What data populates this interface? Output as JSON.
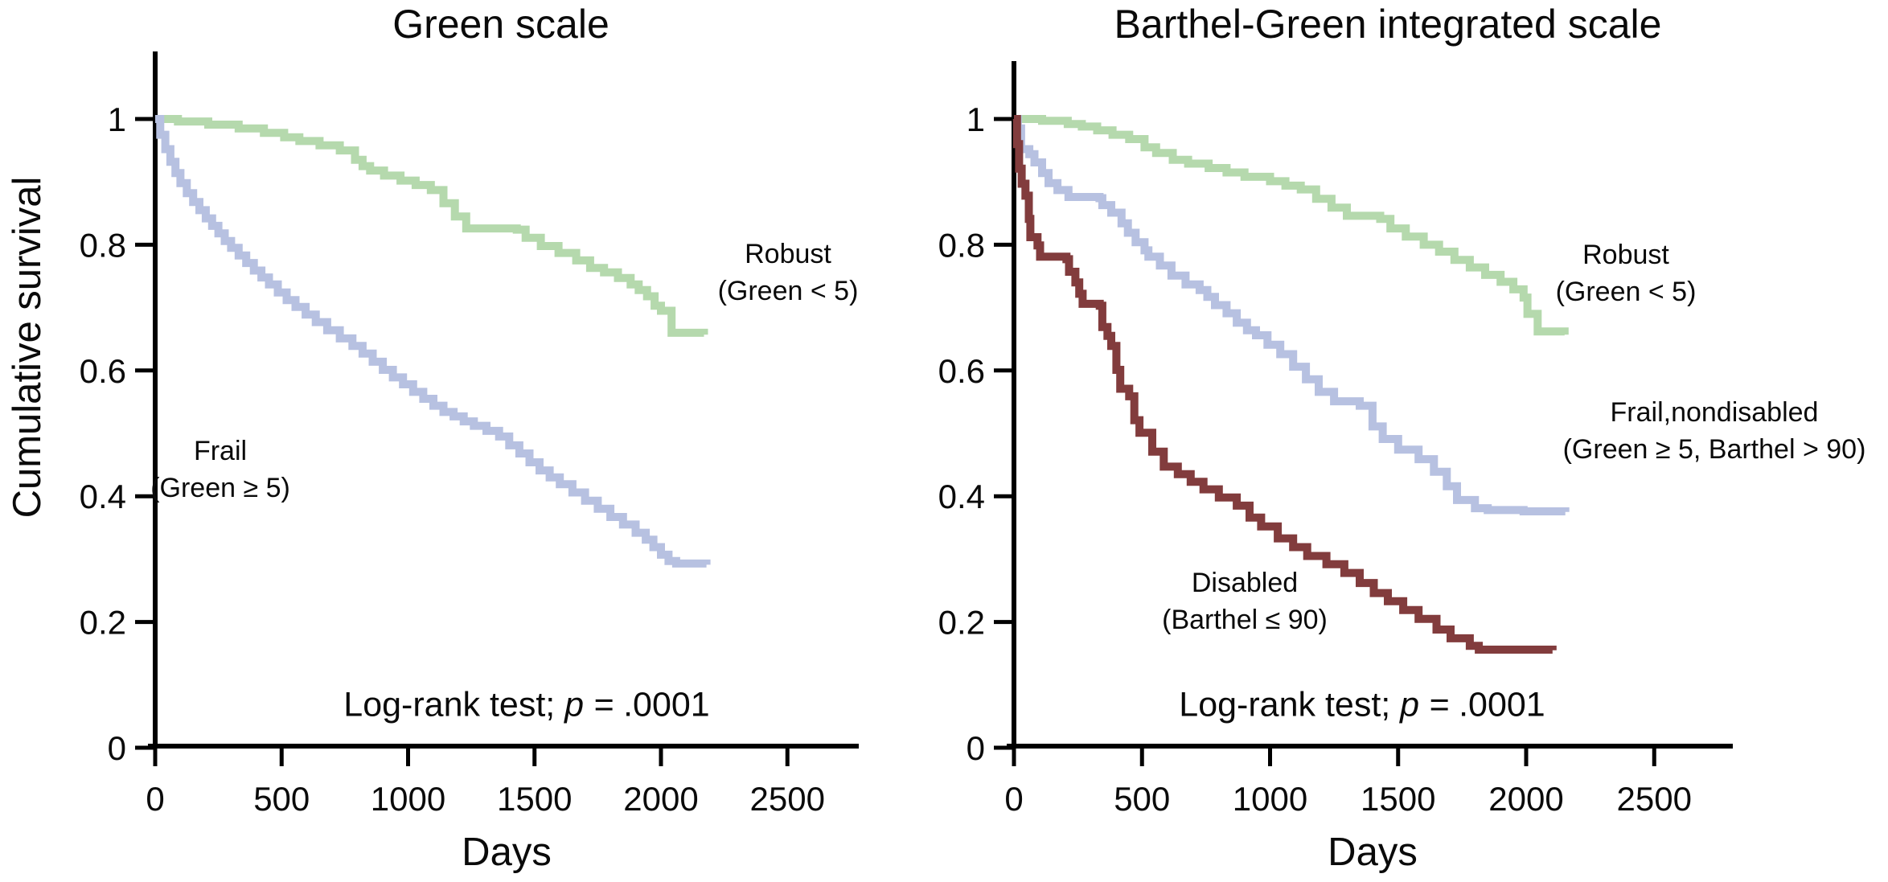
{
  "figure": {
    "y_axis_label": "Cumulative survival",
    "panels": [
      {
        "title": "Green scale",
        "x_axis_label": "Days",
        "log_rank_prefix": "Log-rank test; ",
        "log_rank_p": "p = ",
        "log_rank_value": ".0001",
        "annotations": [
          {
            "line1": "Robust",
            "line2": "(Green < 5)"
          },
          {
            "line1": "Frail",
            "line2": "(Green ≥ 5)"
          }
        ]
      },
      {
        "title": "Barthel-Green integrated scale",
        "x_axis_label": "Days",
        "log_rank_prefix": "Log-rank test; ",
        "log_rank_p": "p = ",
        "log_rank_value": ".0001",
        "annotations": [
          {
            "line1": "Robust",
            "line2": "(Green < 5)"
          },
          {
            "line1": "Frail,nondisabled",
            "line2": "(Green ≥ 5, Barthel > 90)"
          },
          {
            "line1": "Disabled",
            "line2": "(Barthel ≤ 90)"
          }
        ]
      }
    ]
  },
  "chart_data": [
    {
      "type": "line",
      "subtype": "kaplan-meier-step",
      "title": "Green scale",
      "xlabel": "Days",
      "ylabel": "Cumulative survival",
      "xlim": [
        0,
        2780
      ],
      "ylim": [
        0,
        1.1
      ],
      "xticks": [
        0,
        500,
        1000,
        1500,
        2000,
        2500
      ],
      "yticks": [
        0,
        0.2,
        0.4,
        0.6,
        0.8,
        1
      ],
      "grid": false,
      "annotation": "Log-rank test; p = .0001",
      "series": [
        {
          "name": "Robust (Green < 5)",
          "color": "#b5d9ad",
          "points": [
            [
              0,
              1.0
            ],
            [
              90,
              0.996
            ],
            [
              210,
              0.991
            ],
            [
              330,
              0.985
            ],
            [
              430,
              0.978
            ],
            [
              510,
              0.971
            ],
            [
              570,
              0.965
            ],
            [
              650,
              0.958
            ],
            [
              730,
              0.95
            ],
            [
              790,
              0.935
            ],
            [
              820,
              0.925
            ],
            [
              850,
              0.918
            ],
            [
              905,
              0.91
            ],
            [
              970,
              0.902
            ],
            [
              1030,
              0.895
            ],
            [
              1090,
              0.887
            ],
            [
              1140,
              0.866
            ],
            [
              1185,
              0.845
            ],
            [
              1230,
              0.826
            ],
            [
              1430,
              0.824
            ],
            [
              1465,
              0.811
            ],
            [
              1525,
              0.798
            ],
            [
              1595,
              0.787
            ],
            [
              1665,
              0.775
            ],
            [
              1720,
              0.763
            ],
            [
              1775,
              0.756
            ],
            [
              1830,
              0.747
            ],
            [
              1880,
              0.737
            ],
            [
              1912,
              0.728
            ],
            [
              1945,
              0.718
            ],
            [
              1975,
              0.703
            ],
            [
              2000,
              0.695
            ],
            [
              2042,
              0.66
            ],
            [
              2170,
              0.657
            ]
          ]
        },
        {
          "name": "Frail (Green ≥ 5)",
          "color": "#b7c1e1",
          "points": [
            [
              0,
              1.0
            ],
            [
              20,
              0.975
            ],
            [
              40,
              0.952
            ],
            [
              60,
              0.932
            ],
            [
              80,
              0.914
            ],
            [
              100,
              0.898
            ],
            [
              125,
              0.882
            ],
            [
              150,
              0.868
            ],
            [
              175,
              0.855
            ],
            [
              200,
              0.842
            ],
            [
              225,
              0.83
            ],
            [
              250,
              0.818
            ],
            [
              275,
              0.806
            ],
            [
              300,
              0.795
            ],
            [
              330,
              0.783
            ],
            [
              360,
              0.771
            ],
            [
              390,
              0.759
            ],
            [
              420,
              0.748
            ],
            [
              450,
              0.737
            ],
            [
              485,
              0.724
            ],
            [
              520,
              0.712
            ],
            [
              555,
              0.701
            ],
            [
              595,
              0.689
            ],
            [
              635,
              0.677
            ],
            [
              680,
              0.664
            ],
            [
              730,
              0.651
            ],
            [
              780,
              0.639
            ],
            [
              820,
              0.627
            ],
            [
              860,
              0.614
            ],
            [
              900,
              0.601
            ],
            [
              940,
              0.589
            ],
            [
              980,
              0.578
            ],
            [
              1020,
              0.566
            ],
            [
              1060,
              0.555
            ],
            [
              1100,
              0.544
            ],
            [
              1140,
              0.534
            ],
            [
              1180,
              0.527
            ],
            [
              1220,
              0.519
            ],
            [
              1260,
              0.512
            ],
            [
              1310,
              0.504
            ],
            [
              1360,
              0.495
            ],
            [
              1400,
              0.481
            ],
            [
              1440,
              0.468
            ],
            [
              1480,
              0.454
            ],
            [
              1520,
              0.441
            ],
            [
              1560,
              0.43
            ],
            [
              1600,
              0.419
            ],
            [
              1650,
              0.406
            ],
            [
              1700,
              0.393
            ],
            [
              1750,
              0.38
            ],
            [
              1800,
              0.367
            ],
            [
              1850,
              0.355
            ],
            [
              1900,
              0.342
            ],
            [
              1940,
              0.331
            ],
            [
              1970,
              0.319
            ],
            [
              2000,
              0.307
            ],
            [
              2030,
              0.297
            ],
            [
              2060,
              0.293
            ],
            [
              2180,
              0.291
            ]
          ]
        }
      ]
    },
    {
      "type": "line",
      "subtype": "kaplan-meier-step",
      "title": "Barthel-Green integrated scale",
      "xlabel": "Days",
      "ylabel": "Cumulative survival",
      "xlim": [
        0,
        2780
      ],
      "ylim": [
        0,
        1.1
      ],
      "xticks": [
        0,
        500,
        1000,
        1500,
        2000,
        2500
      ],
      "yticks": [
        0,
        0.2,
        0.4,
        0.6,
        0.8,
        1
      ],
      "grid": false,
      "annotation": "Log-rank test; p = .0001",
      "series": [
        {
          "name": "Robust (Green < 5)",
          "color": "#b5d9ad",
          "points": [
            [
              0,
              1.0
            ],
            [
              110,
              0.997
            ],
            [
              210,
              0.992
            ],
            [
              265,
              0.988
            ],
            [
              325,
              0.982
            ],
            [
              385,
              0.975
            ],
            [
              450,
              0.968
            ],
            [
              510,
              0.955
            ],
            [
              555,
              0.946
            ],
            [
              620,
              0.935
            ],
            [
              680,
              0.929
            ],
            [
              760,
              0.922
            ],
            [
              830,
              0.915
            ],
            [
              900,
              0.908
            ],
            [
              1000,
              0.901
            ],
            [
              1060,
              0.894
            ],
            [
              1120,
              0.888
            ],
            [
              1180,
              0.873
            ],
            [
              1240,
              0.859
            ],
            [
              1300,
              0.846
            ],
            [
              1430,
              0.841
            ],
            [
              1470,
              0.826
            ],
            [
              1530,
              0.813
            ],
            [
              1600,
              0.8
            ],
            [
              1660,
              0.789
            ],
            [
              1720,
              0.776
            ],
            [
              1780,
              0.764
            ],
            [
              1840,
              0.752
            ],
            [
              1900,
              0.741
            ],
            [
              1950,
              0.729
            ],
            [
              1990,
              0.716
            ],
            [
              2005,
              0.69
            ],
            [
              2045,
              0.662
            ],
            [
              2150,
              0.657
            ]
          ]
        },
        {
          "name": "Frail,nondisabled (Green ≥ 5, Barthel > 90)",
          "color": "#b7c1e1",
          "points": [
            [
              0,
              1.0
            ],
            [
              15,
              0.985
            ],
            [
              28,
              0.952
            ],
            [
              60,
              0.944
            ],
            [
              80,
              0.931
            ],
            [
              110,
              0.914
            ],
            [
              135,
              0.898
            ],
            [
              170,
              0.887
            ],
            [
              213,
              0.876
            ],
            [
              334,
              0.874
            ],
            [
              345,
              0.863
            ],
            [
              380,
              0.851
            ],
            [
              420,
              0.834
            ],
            [
              445,
              0.819
            ],
            [
              475,
              0.804
            ],
            [
              510,
              0.791
            ],
            [
              525,
              0.781
            ],
            [
              570,
              0.767
            ],
            [
              615,
              0.751
            ],
            [
              670,
              0.737
            ],
            [
              725,
              0.728
            ],
            [
              755,
              0.717
            ],
            [
              785,
              0.704
            ],
            [
              830,
              0.691
            ],
            [
              870,
              0.676
            ],
            [
              910,
              0.664
            ],
            [
              945,
              0.656
            ],
            [
              990,
              0.641
            ],
            [
              1040,
              0.626
            ],
            [
              1090,
              0.606
            ],
            [
              1140,
              0.586
            ],
            [
              1190,
              0.566
            ],
            [
              1250,
              0.551
            ],
            [
              1350,
              0.544
            ],
            [
              1400,
              0.511
            ],
            [
              1440,
              0.491
            ],
            [
              1500,
              0.474
            ],
            [
              1580,
              0.459
            ],
            [
              1640,
              0.439
            ],
            [
              1690,
              0.416
            ],
            [
              1730,
              0.394
            ],
            [
              1800,
              0.381
            ],
            [
              1850,
              0.378
            ],
            [
              1990,
              0.376
            ],
            [
              2153,
              0.375
            ]
          ]
        },
        {
          "name": "Disabled (Barthel ≤ 90)",
          "color": "#823c3d",
          "points": [
            [
              0,
              1.0
            ],
            [
              12,
              0.96
            ],
            [
              20,
              0.921
            ],
            [
              30,
              0.897
            ],
            [
              45,
              0.878
            ],
            [
              58,
              0.841
            ],
            [
              64,
              0.812
            ],
            [
              92,
              0.799
            ],
            [
              102,
              0.781
            ],
            [
              205,
              0.777
            ],
            [
              215,
              0.757
            ],
            [
              240,
              0.74
            ],
            [
              255,
              0.722
            ],
            [
              268,
              0.706
            ],
            [
              335,
              0.703
            ],
            [
              345,
              0.669
            ],
            [
              365,
              0.655
            ],
            [
              380,
              0.639
            ],
            [
              400,
              0.601
            ],
            [
              415,
              0.571
            ],
            [
              450,
              0.559
            ],
            [
              470,
              0.521
            ],
            [
              490,
              0.501
            ],
            [
              540,
              0.471
            ],
            [
              585,
              0.447
            ],
            [
              640,
              0.435
            ],
            [
              690,
              0.423
            ],
            [
              740,
              0.411
            ],
            [
              800,
              0.398
            ],
            [
              870,
              0.385
            ],
            [
              920,
              0.366
            ],
            [
              965,
              0.352
            ],
            [
              1030,
              0.333
            ],
            [
              1090,
              0.319
            ],
            [
              1145,
              0.305
            ],
            [
              1220,
              0.292
            ],
            [
              1290,
              0.278
            ],
            [
              1350,
              0.262
            ],
            [
              1405,
              0.246
            ],
            [
              1460,
              0.233
            ],
            [
              1520,
              0.219
            ],
            [
              1580,
              0.205
            ],
            [
              1650,
              0.188
            ],
            [
              1705,
              0.174
            ],
            [
              1780,
              0.162
            ],
            [
              1815,
              0.156
            ],
            [
              2103,
              0.155
            ]
          ]
        }
      ]
    }
  ]
}
